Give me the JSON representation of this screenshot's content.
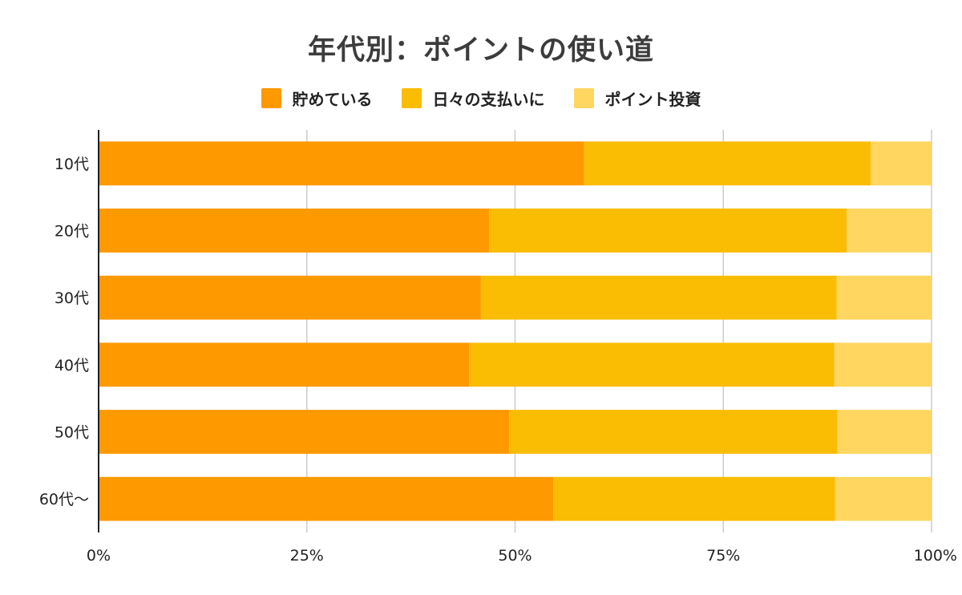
{
  "chart_data": {
    "type": "bar",
    "orientation": "horizontal",
    "stacked": "percent",
    "title": "年代別：ポイントの使い道",
    "categories": [
      "10代",
      "20代",
      "30代",
      "40代",
      "50代",
      "60代～"
    ],
    "series": [
      {
        "name": "貯めている",
        "color": "#FF9900",
        "values": [
          58.3,
          46.9,
          45.9,
          44.5,
          49.3,
          54.6
        ]
      },
      {
        "name": "日々の支払いに",
        "color": "#FBBC04",
        "values": [
          34.4,
          42.9,
          42.7,
          43.8,
          39.4,
          33.8
        ]
      },
      {
        "name": "ポイント投資",
        "color": "#FFD660",
        "values": [
          7.3,
          10.2,
          11.4,
          11.7,
          11.3,
          11.6
        ]
      }
    ],
    "xlim": [
      0,
      100
    ],
    "xticks": [
      "0%",
      "25%",
      "50%",
      "75%",
      "100%"
    ],
    "xlabel": "",
    "ylabel": "",
    "grid": true,
    "legend_position": "top"
  }
}
